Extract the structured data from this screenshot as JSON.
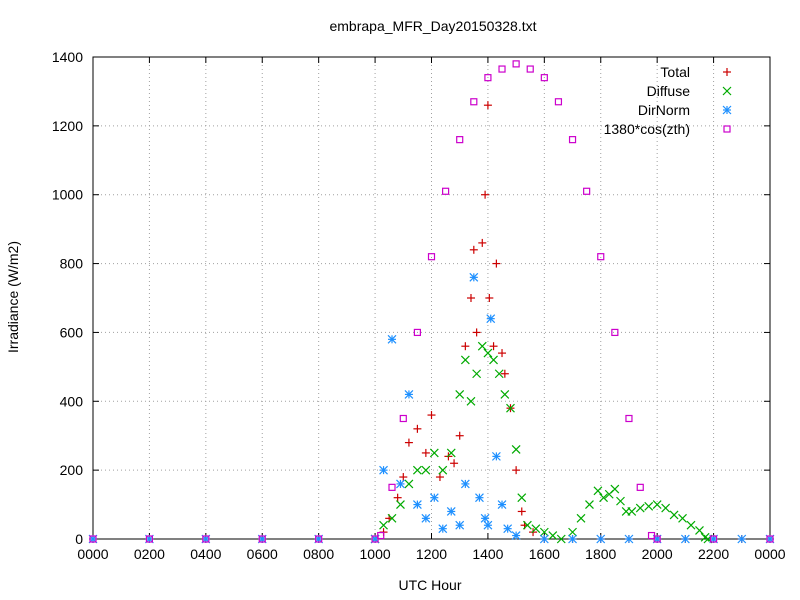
{
  "chart_data": {
    "type": "scatter",
    "title": "embrapa_MFR_Day20150328.txt",
    "xlabel": "UTC Hour",
    "ylabel": "Irradiance (W/m2)",
    "xlim": [
      0,
      24
    ],
    "ylim": [
      0,
      1400
    ],
    "grid": true,
    "legend_position": "top-right",
    "x_ticks": [
      {
        "v": 0,
        "label": "0000"
      },
      {
        "v": 2,
        "label": "0200"
      },
      {
        "v": 4,
        "label": "0400"
      },
      {
        "v": 6,
        "label": "0600"
      },
      {
        "v": 8,
        "label": "0800"
      },
      {
        "v": 10,
        "label": "1000"
      },
      {
        "v": 12,
        "label": "1200"
      },
      {
        "v": 14,
        "label": "1400"
      },
      {
        "v": 16,
        "label": "1600"
      },
      {
        "v": 18,
        "label": "1800"
      },
      {
        "v": 20,
        "label": "2000"
      },
      {
        "v": 22,
        "label": "2200"
      },
      {
        "v": 24,
        "label": "0000"
      }
    ],
    "y_ticks": [
      0,
      200,
      400,
      600,
      800,
      1000,
      1200,
      1400
    ],
    "series": [
      {
        "name": "Total",
        "color": "#cc0000",
        "marker": "plus",
        "points": [
          [
            0,
            0
          ],
          [
            2,
            0
          ],
          [
            4,
            0
          ],
          [
            6,
            0
          ],
          [
            8,
            0
          ],
          [
            10,
            0
          ],
          [
            10.3,
            20
          ],
          [
            10.5,
            60
          ],
          [
            10.8,
            120
          ],
          [
            11.0,
            180
          ],
          [
            11.2,
            280
          ],
          [
            11.5,
            320
          ],
          [
            11.8,
            250
          ],
          [
            12.0,
            360
          ],
          [
            12.3,
            180
          ],
          [
            12.6,
            240
          ],
          [
            12.8,
            220
          ],
          [
            13.0,
            300
          ],
          [
            13.2,
            560
          ],
          [
            13.4,
            700
          ],
          [
            13.5,
            840
          ],
          [
            13.6,
            600
          ],
          [
            13.8,
            860
          ],
          [
            13.9,
            1000
          ],
          [
            14.0,
            1260
          ],
          [
            14.05,
            700
          ],
          [
            14.2,
            560
          ],
          [
            14.3,
            800
          ],
          [
            14.5,
            540
          ],
          [
            14.6,
            480
          ],
          [
            14.8,
            380
          ],
          [
            15.0,
            200
          ],
          [
            15.2,
            80
          ],
          [
            15.3,
            40
          ],
          [
            15.6,
            20
          ],
          [
            16,
            0
          ],
          [
            17,
            0
          ],
          [
            18,
            0
          ],
          [
            19,
            0
          ],
          [
            20,
            0
          ],
          [
            21,
            0
          ],
          [
            22,
            0
          ],
          [
            23,
            0
          ],
          [
            24,
            0
          ]
        ]
      },
      {
        "name": "Diffuse",
        "color": "#00aa00",
        "marker": "cross",
        "points": [
          [
            10.0,
            0
          ],
          [
            10.3,
            40
          ],
          [
            10.6,
            60
          ],
          [
            10.9,
            100
          ],
          [
            11.2,
            160
          ],
          [
            11.5,
            200
          ],
          [
            11.8,
            200
          ],
          [
            12.1,
            250
          ],
          [
            12.4,
            200
          ],
          [
            12.7,
            250
          ],
          [
            13.0,
            420
          ],
          [
            13.2,
            520
          ],
          [
            13.4,
            400
          ],
          [
            13.6,
            480
          ],
          [
            13.8,
            560
          ],
          [
            14.0,
            540
          ],
          [
            14.2,
            520
          ],
          [
            14.4,
            480
          ],
          [
            14.6,
            420
          ],
          [
            14.8,
            380
          ],
          [
            15.0,
            260
          ],
          [
            15.2,
            120
          ],
          [
            15.4,
            40
          ],
          [
            15.7,
            30
          ],
          [
            16.0,
            20
          ],
          [
            16.3,
            10
          ],
          [
            16.6,
            0
          ],
          [
            17.0,
            20
          ],
          [
            17.3,
            60
          ],
          [
            17.6,
            100
          ],
          [
            17.9,
            140
          ],
          [
            18.1,
            120
          ],
          [
            18.3,
            130
          ],
          [
            18.5,
            145
          ],
          [
            18.7,
            110
          ],
          [
            18.9,
            80
          ],
          [
            19.1,
            80
          ],
          [
            19.4,
            90
          ],
          [
            19.7,
            95
          ],
          [
            20.0,
            100
          ],
          [
            20.3,
            90
          ],
          [
            20.6,
            70
          ],
          [
            20.9,
            60
          ],
          [
            21.2,
            40
          ],
          [
            21.5,
            25
          ],
          [
            21.7,
            5
          ],
          [
            21.8,
            0
          ]
        ]
      },
      {
        "name": "DirNorm",
        "color": "#1e90ff",
        "marker": "star",
        "points": [
          [
            0,
            0
          ],
          [
            2,
            0
          ],
          [
            4,
            0
          ],
          [
            6,
            0
          ],
          [
            8,
            0
          ],
          [
            10,
            0
          ],
          [
            10.3,
            200
          ],
          [
            10.6,
            580
          ],
          [
            10.9,
            160
          ],
          [
            11.2,
            420
          ],
          [
            11.5,
            100
          ],
          [
            11.8,
            60
          ],
          [
            12.1,
            120
          ],
          [
            12.4,
            30
          ],
          [
            12.7,
            80
          ],
          [
            13.0,
            40
          ],
          [
            13.2,
            160
          ],
          [
            13.5,
            760
          ],
          [
            13.7,
            120
          ],
          [
            13.9,
            60
          ],
          [
            14.0,
            40
          ],
          [
            14.1,
            640
          ],
          [
            14.3,
            240
          ],
          [
            14.5,
            100
          ],
          [
            14.7,
            30
          ],
          [
            15.0,
            10
          ],
          [
            16,
            0
          ],
          [
            17,
            0
          ],
          [
            18,
            0
          ],
          [
            19,
            0
          ],
          [
            20,
            0
          ],
          [
            21,
            0
          ],
          [
            22,
            0
          ],
          [
            23,
            0
          ],
          [
            24,
            0
          ]
        ]
      },
      {
        "name": "1380*cos(zth)",
        "color": "#cc00cc",
        "marker": "square",
        "points": [
          [
            0,
            0
          ],
          [
            2,
            0
          ],
          [
            4,
            0
          ],
          [
            6,
            0
          ],
          [
            8,
            0
          ],
          [
            10,
            0
          ],
          [
            10.2,
            10
          ],
          [
            10.6,
            150
          ],
          [
            11.0,
            350
          ],
          [
            11.5,
            600
          ],
          [
            12.0,
            820
          ],
          [
            12.5,
            1010
          ],
          [
            13.0,
            1160
          ],
          [
            13.5,
            1270
          ],
          [
            14.0,
            1340
          ],
          [
            14.5,
            1365
          ],
          [
            15.0,
            1380
          ],
          [
            15.5,
            1365
          ],
          [
            16.0,
            1340
          ],
          [
            16.5,
            1270
          ],
          [
            17.0,
            1160
          ],
          [
            17.5,
            1010
          ],
          [
            18.0,
            820
          ],
          [
            18.5,
            600
          ],
          [
            19.0,
            350
          ],
          [
            19.4,
            150
          ],
          [
            19.8,
            10
          ],
          [
            20,
            0
          ],
          [
            22,
            0
          ],
          [
            24,
            0
          ]
        ]
      }
    ]
  }
}
